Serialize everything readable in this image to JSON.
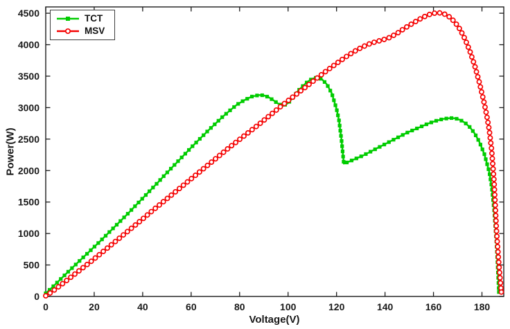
{
  "chart_data": {
    "type": "line",
    "title": "",
    "xlabel": "Voltage(V)",
    "ylabel": "Power(W)",
    "xlim": [
      0,
      189
    ],
    "ylim": [
      0,
      4600
    ],
    "xticks": [
      0,
      20,
      40,
      60,
      80,
      100,
      120,
      140,
      160,
      180
    ],
    "yticks": [
      0,
      500,
      1000,
      1500,
      2000,
      2500,
      3000,
      3500,
      4000,
      4500
    ],
    "grid": false,
    "legend": {
      "position": "top-left",
      "entries": [
        "TCT",
        "MSV"
      ]
    },
    "colors": {
      "axis": "#1a1a1a",
      "tct": "#00cc00",
      "msv": "#f50000",
      "marker_face": "#ffffff",
      "background": "#ffffff"
    },
    "series": [
      {
        "name": "TCT",
        "color": "#00cc00",
        "marker": "square",
        "x": [
          0,
          2,
          4,
          6,
          8,
          10,
          13,
          16,
          19,
          22,
          25,
          28,
          31,
          34,
          37,
          40,
          43,
          46,
          49,
          52,
          55,
          58,
          61,
          64,
          67,
          70,
          73,
          76,
          79,
          82,
          85,
          88,
          90,
          92,
          94,
          96,
          98,
          100,
          102,
          104,
          106,
          108,
          110,
          112,
          114,
          116,
          118,
          120,
          121,
          122,
          123,
          125,
          128,
          131,
          134,
          137,
          140,
          143,
          146,
          149,
          152,
          155,
          158,
          161,
          164,
          167,
          169,
          171,
          173,
          175,
          177,
          179,
          181,
          183,
          184,
          185,
          186,
          187
        ],
        "y": [
          50,
          120,
          195,
          270,
          345,
          420,
          530,
          640,
          750,
          860,
          975,
          1090,
          1205,
          1320,
          1440,
          1560,
          1680,
          1800,
          1925,
          2045,
          2165,
          2285,
          2405,
          2520,
          2635,
          2745,
          2855,
          2955,
          3050,
          3120,
          3175,
          3200,
          3195,
          3165,
          3115,
          3060,
          3030,
          3070,
          3160,
          3260,
          3340,
          3410,
          3460,
          3480,
          3450,
          3370,
          3230,
          2980,
          2800,
          2500,
          2110,
          2140,
          2190,
          2240,
          2300,
          2360,
          2420,
          2480,
          2540,
          2600,
          2650,
          2700,
          2750,
          2790,
          2820,
          2835,
          2830,
          2805,
          2760,
          2690,
          2590,
          2450,
          2260,
          1980,
          1750,
          1380,
          850,
          70
        ]
      },
      {
        "name": "MSV",
        "color": "#f50000",
        "marker": "circle",
        "x": [
          0,
          2,
          4,
          6,
          8,
          10,
          13,
          16,
          19,
          22,
          25,
          28,
          31,
          34,
          37,
          40,
          43,
          46,
          49,
          52,
          55,
          58,
          61,
          64,
          67,
          70,
          73,
          76,
          79,
          82,
          85,
          88,
          91,
          94,
          97,
          100,
          103,
          106,
          109,
          112,
          115,
          118,
          121,
          124,
          127,
          130,
          133,
          136,
          139,
          142,
          145,
          148,
          151,
          154,
          157,
          159,
          161,
          163,
          165,
          167,
          169,
          171,
          173,
          175,
          177,
          179,
          181,
          182,
          183,
          184,
          185,
          186,
          187,
          188
        ],
        "y": [
          10,
          60,
          115,
          175,
          235,
          295,
          385,
          475,
          565,
          660,
          755,
          850,
          945,
          1040,
          1135,
          1230,
          1330,
          1425,
          1520,
          1615,
          1710,
          1805,
          1900,
          1995,
          2090,
          2185,
          2280,
          2375,
          2465,
          2555,
          2645,
          2735,
          2830,
          2925,
          3020,
          3110,
          3200,
          3290,
          3380,
          3470,
          3560,
          3645,
          3730,
          3810,
          3885,
          3950,
          4005,
          4045,
          4075,
          4115,
          4180,
          4260,
          4330,
          4400,
          4460,
          4490,
          4505,
          4505,
          4480,
          4430,
          4350,
          4240,
          4090,
          3900,
          3670,
          3390,
          3060,
          2870,
          2650,
          2330,
          1830,
          1050,
          500,
          70
        ]
      }
    ]
  }
}
